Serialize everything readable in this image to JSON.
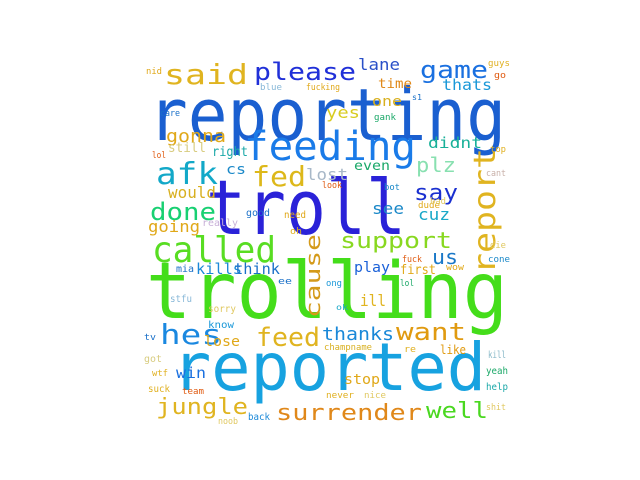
{
  "words": [
    {
      "text": "reporting",
      "color": "#1a5fd0"
    },
    {
      "text": "trolling",
      "color": "#44dd1a"
    },
    {
      "text": "troll",
      "color": "#2a22d8"
    },
    {
      "text": "reported",
      "color": "#17a2e0"
    },
    {
      "text": "feeding",
      "color": "#1a7be8"
    },
    {
      "text": "called",
      "color": "#58dd22"
    },
    {
      "text": "report",
      "color": "#e0b420"
    },
    {
      "text": "said",
      "color": "#e0b420"
    },
    {
      "text": "please",
      "color": "#2030d8"
    },
    {
      "text": "game",
      "color": "#1a70e0"
    },
    {
      "text": "afk",
      "color": "#12a8c8"
    },
    {
      "text": "fed",
      "color": "#ddb81a"
    },
    {
      "text": "done",
      "color": "#18d072"
    },
    {
      "text": "support",
      "color": "#88d820"
    },
    {
      "text": "cause",
      "color": "#d49a1a"
    },
    {
      "text": "hes",
      "color": "#1a88e0"
    },
    {
      "text": "feed",
      "color": "#e0b420"
    },
    {
      "text": "want",
      "color": "#e09a10"
    },
    {
      "text": "surrender",
      "color": "#e0881a"
    },
    {
      "text": "jungle",
      "color": "#e0b420"
    },
    {
      "text": "well",
      "color": "#4ad820"
    },
    {
      "text": "say",
      "color": "#1a30d0"
    },
    {
      "text": "plz",
      "color": "#88e0b0"
    },
    {
      "text": "us",
      "color": "#1a78c8"
    },
    {
      "text": "gonna",
      "color": "#e0a818"
    },
    {
      "text": "thanks",
      "color": "#1a88d8"
    },
    {
      "text": "lane",
      "color": "#2a50c8"
    },
    {
      "text": "thats",
      "color": "#1a98d8"
    },
    {
      "text": "didnt",
      "color": "#18b098"
    },
    {
      "text": "yes",
      "color": "#d8cc20"
    },
    {
      "text": "one",
      "color": "#d8b020"
    },
    {
      "text": "time",
      "color": "#e08818"
    },
    {
      "text": "lost",
      "color": "#a8b8c8"
    },
    {
      "text": "even",
      "color": "#1aa868"
    },
    {
      "text": "would",
      "color": "#d8b020"
    },
    {
      "text": "going",
      "color": "#e0a818"
    },
    {
      "text": "see",
      "color": "#1a88c8"
    },
    {
      "text": "cuz",
      "color": "#1aa8c8"
    },
    {
      "text": "kills",
      "color": "#1a88d8"
    },
    {
      "text": "think",
      "color": "#1a70c8"
    },
    {
      "text": "play",
      "color": "#1a60d8"
    },
    {
      "text": "first",
      "color": "#e0a818"
    },
    {
      "text": "ill",
      "color": "#e0b420"
    },
    {
      "text": "lose",
      "color": "#e0a818"
    },
    {
      "text": "win",
      "color": "#1a70e0"
    },
    {
      "text": "stop",
      "color": "#e0a818"
    },
    {
      "text": "still",
      "color": "#d8cc80"
    },
    {
      "text": "right",
      "color": "#1aa8a8"
    },
    {
      "text": "cs",
      "color": "#1a88c8"
    },
    {
      "text": "really",
      "color": "#c8b0d8"
    },
    {
      "text": "good",
      "color": "#1a70c8"
    },
    {
      "text": "need",
      "color": "#e0a818"
    },
    {
      "text": "sorry",
      "color": "#e0c860"
    },
    {
      "text": "know",
      "color": "#1a98d8"
    },
    {
      "text": "stfu",
      "color": "#88b8d8"
    },
    {
      "text": "mia",
      "color": "#1a70c8"
    },
    {
      "text": "like",
      "color": "#e09a10"
    },
    {
      "text": "nice",
      "color": "#e0c860"
    },
    {
      "text": "never",
      "color": "#e0b020"
    },
    {
      "text": "back",
      "color": "#1a88d8"
    },
    {
      "text": "noob",
      "color": "#e0c860"
    },
    {
      "text": "team",
      "color": "#e05a10"
    },
    {
      "text": "suck",
      "color": "#e0b020"
    },
    {
      "text": "wtf",
      "color": "#e0b020"
    },
    {
      "text": "got",
      "color": "#d8cc80"
    },
    {
      "text": "yeah",
      "color": "#1aa868"
    },
    {
      "text": "help",
      "color": "#1aa8a8"
    },
    {
      "text": "shit",
      "color": "#e0c860"
    },
    {
      "text": "kill",
      "color": "#88b8c8"
    },
    {
      "text": "cant",
      "color": "#c8b0a8"
    },
    {
      "text": "dude",
      "color": "#e0a818"
    },
    {
      "text": "fuck",
      "color": "#e05a10"
    },
    {
      "text": "bad",
      "color": "#e0c860"
    },
    {
      "text": "bot",
      "color": "#1a88c8"
    },
    {
      "text": "look",
      "color": "#e05a10"
    },
    {
      "text": "lol",
      "color": "#e05a10"
    },
    {
      "text": "care",
      "color": "#1a70c8"
    },
    {
      "text": "nid",
      "color": "#e0a818"
    },
    {
      "text": "blue",
      "color": "#88b8d8"
    },
    {
      "text": "fucking",
      "color": "#e0a818"
    },
    {
      "text": "guys",
      "color": "#e0b020"
    },
    {
      "text": "go",
      "color": "#e05a10"
    },
    {
      "text": "top",
      "color": "#e0b020"
    },
    {
      "text": "gank",
      "color": "#1aa868"
    },
    {
      "text": "ok",
      "color": "#1aa8c8"
    },
    {
      "text": "wow",
      "color": "#e0a818"
    },
    {
      "text": "ong",
      "color": "#1a98d8"
    },
    {
      "text": "ee",
      "color": "#1a70c8"
    },
    {
      "text": "oh",
      "color": "#e0b020"
    },
    {
      "text": "re",
      "color": "#e0b020"
    },
    {
      "text": "champname",
      "color": "#d8b020"
    },
    {
      "text": "die",
      "color": "#e0c860"
    },
    {
      "text": "cone",
      "color": "#1a88c8"
    },
    {
      "text": "tv",
      "color": "#1a70c8"
    },
    {
      "text": "lol",
      "color": "#1aa868"
    },
    {
      "text": "s1",
      "color": "#1a70c8"
    }
  ]
}
